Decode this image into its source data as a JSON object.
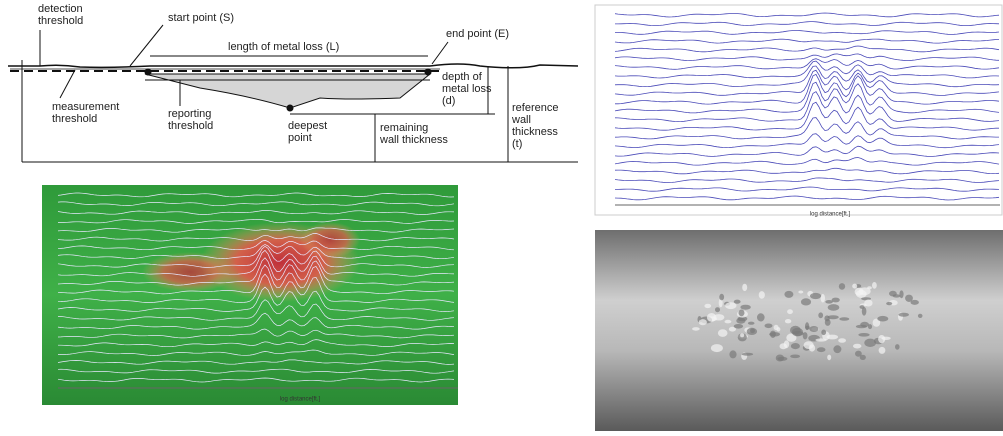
{
  "diagram": {
    "labels": [
      {
        "lines": [
          "detection",
          "threshold"
        ]
      },
      {
        "lines": [
          "start point (S)"
        ]
      },
      {
        "lines": [
          "length of metal loss (L)"
        ]
      },
      {
        "lines": [
          "end point (E)"
        ]
      },
      {
        "lines": [
          "depth of",
          "metal loss",
          "(d)"
        ]
      },
      {
        "lines": [
          "reference",
          "wall",
          "thickness",
          "(t)"
        ]
      },
      {
        "lines": [
          "measurement",
          "threshold"
        ]
      },
      {
        "lines": [
          "reporting",
          "threshold"
        ]
      },
      {
        "lines": [
          "deepest",
          "point"
        ]
      },
      {
        "lines": [
          "remaining",
          "wall thickness"
        ]
      }
    ]
  },
  "heatmap_plot": {
    "x_label": "log distance[ft.]"
  },
  "trace_plot": {
    "x_label": "log distance[ft.]"
  }
}
